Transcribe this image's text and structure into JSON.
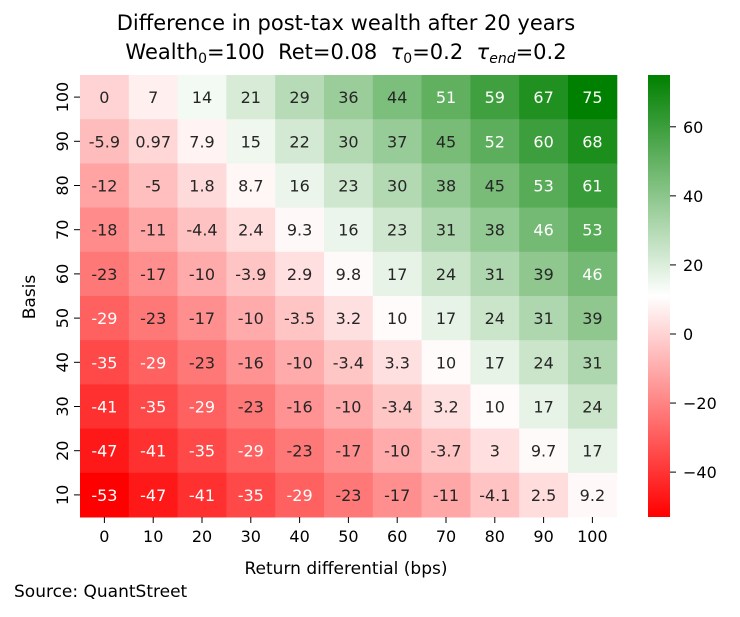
{
  "chart_data": {
    "type": "heatmap",
    "title_line1": "Difference in post-tax wealth after 20 years",
    "title_line2": {
      "wealth": "Wealth",
      "wealth_sub": "0",
      "wealth_val": "=100",
      "ret": "Ret=0.08",
      "tau0_sym": "τ",
      "tau0_sub": "0",
      "tau0_val": "=0.2",
      "tauend_sym": "τ",
      "tauend_sub": "end",
      "tauend_val": "=0.2"
    },
    "xlabel": "Return differential (bps)",
    "ylabel": "Basis",
    "x_categories": [
      "0",
      "10",
      "20",
      "30",
      "40",
      "50",
      "60",
      "70",
      "80",
      "90",
      "100"
    ],
    "y_categories": [
      "100",
      "90",
      "80",
      "70",
      "60",
      "50",
      "40",
      "30",
      "20",
      "10"
    ],
    "values": [
      [
        0,
        7,
        14,
        21,
        29,
        36,
        44,
        51,
        59,
        67,
        75
      ],
      [
        -5.9,
        0.97,
        7.9,
        15,
        22,
        30,
        37,
        45,
        52,
        60,
        68
      ],
      [
        -12,
        -5,
        1.8,
        8.7,
        16,
        23,
        30,
        38,
        45,
        53,
        61
      ],
      [
        -18,
        -11,
        -4.4,
        2.4,
        9.3,
        16,
        23,
        31,
        38,
        46,
        53
      ],
      [
        -23,
        -17,
        -10,
        -3.9,
        2.9,
        9.8,
        17,
        24,
        31,
        39,
        46
      ],
      [
        -29,
        -23,
        -17,
        -10,
        -3.5,
        3.2,
        10,
        17,
        24,
        31,
        39
      ],
      [
        -35,
        -29,
        -23,
        -16,
        -10,
        -3.4,
        3.3,
        10,
        17,
        24,
        31
      ],
      [
        -41,
        -35,
        -29,
        -23,
        -16,
        -10,
        -3.4,
        3.2,
        10,
        17,
        24
      ],
      [
        -47,
        -41,
        -35,
        -29,
        -23,
        -17,
        -10,
        -3.7,
        3,
        9.7,
        17
      ],
      [
        -53,
        -47,
        -41,
        -35,
        -29,
        -23,
        -17,
        -11,
        -4.1,
        2.5,
        9.2
      ]
    ],
    "colorbar": {
      "vmin": -53,
      "vmax": 75,
      "center": 11,
      "ticks": [
        60,
        40,
        20,
        0,
        -20,
        -40
      ],
      "tick_labels": [
        "60",
        "40",
        "20",
        "0",
        "−20",
        "−40"
      ],
      "colors": {
        "low": "#ff0000",
        "mid": "#ffffff",
        "high": "#008000"
      }
    }
  },
  "source": "Source: QuantStreet"
}
